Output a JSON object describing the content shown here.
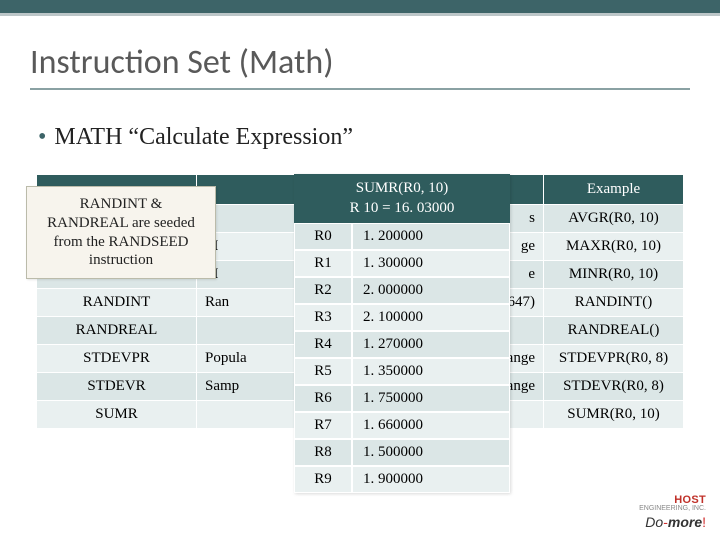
{
  "title": "Instruction Set (Math)",
  "bullet": "MATH “Calculate Expression”",
  "table": {
    "headers": [
      "",
      "",
      "Example"
    ],
    "rows": [
      {
        "name": "",
        "desc": "",
        "ex": "AVGR(R0, 10)"
      },
      {
        "name": "",
        "desc": "M",
        "ex": "MAXR(R0, 10)"
      },
      {
        "name": "",
        "desc": "M",
        "ex": "MINR(R0, 10)"
      },
      {
        "name": "RANDINT",
        "desc": "Ran",
        "ex": "RANDINT()"
      },
      {
        "name": "RANDREAL",
        "desc": "",
        "ex": "RANDREAL()"
      },
      {
        "name": "STDEVPR",
        "desc": "Popula",
        "ex": "STDEVPR(R0, 8)"
      },
      {
        "name": "STDEVR",
        "desc": "Samp",
        "ex": "STDEVR(R0, 8)"
      },
      {
        "name": "SUMR",
        "desc": "",
        "ex": "SUMR(R0, 10)"
      }
    ]
  },
  "note": "RANDINT & RANDREAL are seeded from the RANDSEED instruction",
  "sumr": {
    "hdr1": "SUMR(R0, 10)",
    "hdr2": "R 10 = 16. 03000",
    "rows": [
      {
        "r": "R0",
        "v": "1. 200000"
      },
      {
        "r": "R1",
        "v": "1. 300000"
      },
      {
        "r": "R2",
        "v": "2. 000000"
      },
      {
        "r": "R3",
        "v": "2. 100000"
      },
      {
        "r": "R4",
        "v": "1. 270000"
      },
      {
        "r": "R5",
        "v": "1. 350000"
      },
      {
        "r": "R6",
        "v": "1. 750000"
      },
      {
        "r": "R7",
        "v": "1. 660000"
      },
      {
        "r": "R8",
        "v": "1. 500000"
      },
      {
        "r": "R9",
        "v": "1. 900000"
      }
    ]
  },
  "desc_tail": {
    "0": "s",
    "1": "ge",
    "2": "e",
    "3": "3647)",
    "4": "",
    "5": "f Range",
    "6": "Range",
    "7": ""
  },
  "logo": {
    "brand": "HOST",
    "sub": "ENGINEERING, INC.",
    "do": "Do",
    "more": "more",
    "bang": "!"
  }
}
